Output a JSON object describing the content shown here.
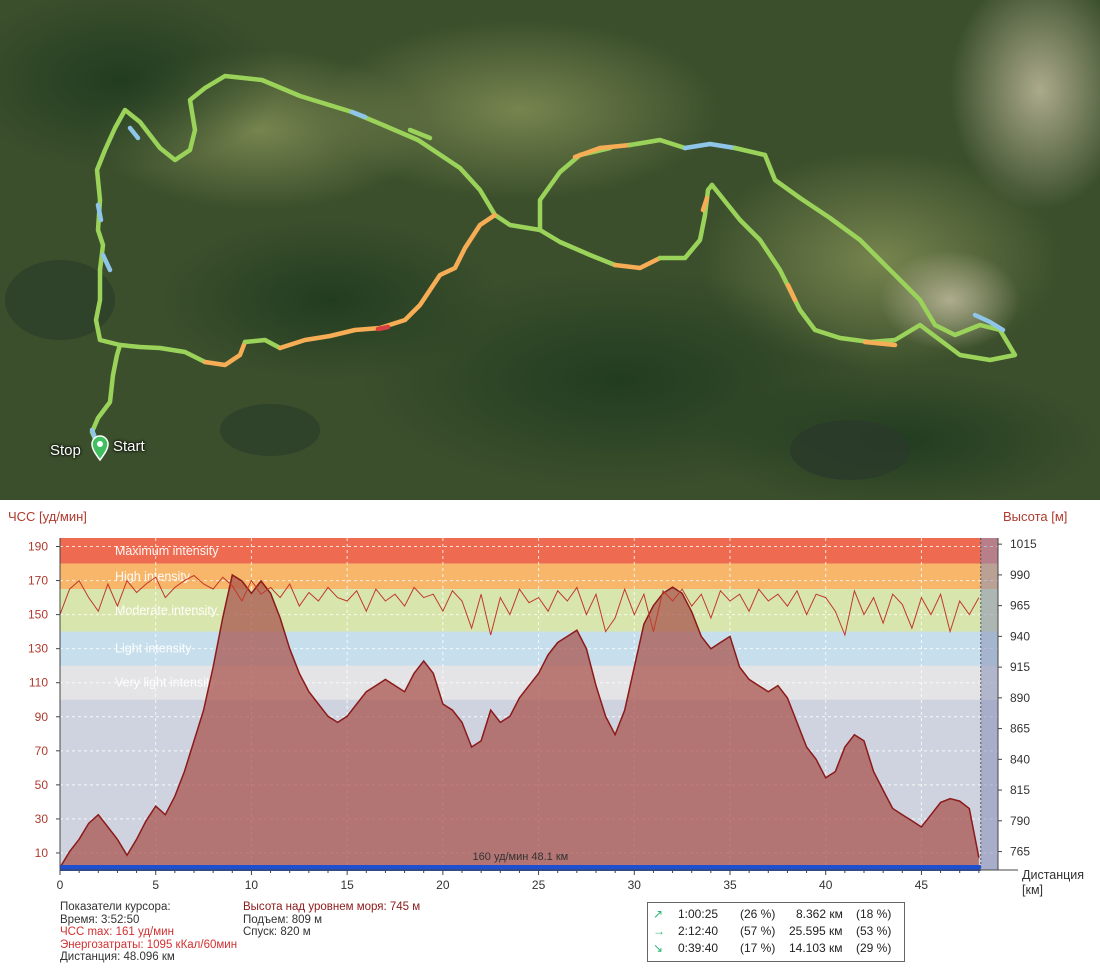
{
  "map": {
    "labels": {
      "stop": "Stop",
      "start": "Start"
    },
    "colors": {
      "route_green": "#9bd35a",
      "route_orange": "#f6ad55",
      "route_blue": "#8ec5e8",
      "route_red": "#d94040",
      "marker": "#3fbf5f"
    }
  },
  "chart": {
    "left_axis_title": "ЧСС [уд/мин]",
    "right_axis_title": "Высота [м]",
    "x_axis_title_line1": "Дистанция",
    "x_axis_title_line2": "[км]",
    "cursor_label": "160 уд/мин 48.1 км"
  },
  "chart_data": {
    "type": "area",
    "xlim": [
      0,
      49
    ],
    "xticks": [
      0,
      5,
      10,
      15,
      20,
      25,
      30,
      35,
      40,
      45
    ],
    "left_axis": {
      "label": "ЧСС [уд/мин]",
      "ylim": [
        0,
        195
      ],
      "ticks": [
        10,
        30,
        50,
        70,
        90,
        110,
        130,
        150,
        170,
        190
      ]
    },
    "right_axis": {
      "label": "Высота [м]",
      "ylim": [
        750,
        1020
      ],
      "ticks": [
        765,
        790,
        815,
        840,
        865,
        890,
        915,
        940,
        965,
        990,
        1015
      ]
    },
    "zones": [
      {
        "name": "Maximum intensity",
        "from": 180,
        "to": 195,
        "color": "#ee6a50"
      },
      {
        "name": "High intensity",
        "from": 165,
        "to": 180,
        "color": "#f7b66a"
      },
      {
        "name": "Moderate intensity",
        "from": 140,
        "to": 165,
        "color": "#d8e6ae"
      },
      {
        "name": "Light intensity",
        "from": 120,
        "to": 140,
        "color": "#c7dfec"
      },
      {
        "name": "Very light intensity",
        "from": 100,
        "to": 120,
        "color": "#e4e4e6"
      }
    ],
    "series": [
      {
        "name": "Высота над уровнем моря",
        "axis": "right",
        "color": "#8b1a1a",
        "x": [
          0,
          0.5,
          1,
          1.5,
          2,
          2.5,
          3,
          3.5,
          4,
          4.5,
          5,
          5.5,
          6,
          6.5,
          7,
          7.5,
          8,
          8.5,
          9,
          9.5,
          10,
          10.5,
          11,
          11.5,
          12,
          12.5,
          13,
          13.5,
          14,
          14.5,
          15,
          15.5,
          16,
          16.5,
          17,
          17.5,
          18,
          18.5,
          19,
          19.5,
          20,
          20.5,
          21,
          21.5,
          22,
          22.5,
          23,
          23.5,
          24,
          24.5,
          25,
          25.5,
          26,
          26.5,
          27,
          27.5,
          28,
          28.5,
          29,
          29.5,
          30,
          30.5,
          31,
          31.5,
          32,
          32.5,
          33,
          33.5,
          34,
          34.5,
          35,
          35.5,
          36,
          36.5,
          37,
          37.5,
          38,
          38.5,
          39,
          39.5,
          40,
          40.5,
          41,
          41.5,
          42,
          42.5,
          43,
          43.5,
          44,
          44.5,
          45,
          45.5,
          46,
          46.5,
          47,
          47.5,
          48
        ],
        "values": [
          752,
          765,
          775,
          788,
          795,
          785,
          775,
          762,
          775,
          790,
          802,
          795,
          810,
          830,
          855,
          880,
          915,
          955,
          990,
          985,
          975,
          985,
          975,
          955,
          930,
          910,
          895,
          885,
          875,
          870,
          875,
          885,
          895,
          900,
          905,
          900,
          895,
          910,
          920,
          910,
          885,
          880,
          870,
          850,
          855,
          880,
          870,
          875,
          890,
          900,
          910,
          925,
          935,
          940,
          945,
          930,
          900,
          875,
          860,
          880,
          915,
          950,
          965,
          975,
          980,
          975,
          960,
          940,
          930,
          935,
          940,
          915,
          905,
          900,
          895,
          900,
          890,
          870,
          850,
          840,
          825,
          830,
          850,
          860,
          855,
          830,
          815,
          800,
          795,
          790,
          785,
          795,
          805,
          808,
          806,
          800,
          760
        ]
      },
      {
        "name": "ЧСС",
        "axis": "left",
        "color": "#c0392b",
        "x": [
          0,
          0.5,
          1,
          1.5,
          2,
          2.5,
          3,
          3.5,
          4,
          4.5,
          5,
          5.5,
          6,
          6.5,
          7,
          7.5,
          8,
          8.5,
          9,
          9.5,
          10,
          10.5,
          11,
          11.5,
          12,
          12.5,
          13,
          13.5,
          14,
          14.5,
          15,
          15.5,
          16,
          16.5,
          17,
          17.5,
          18,
          18.5,
          19,
          19.5,
          20,
          20.5,
          21,
          21.5,
          22,
          22.5,
          23,
          23.5,
          24,
          24.5,
          25,
          25.5,
          26,
          26.5,
          27,
          27.5,
          28,
          28.5,
          29,
          29.5,
          30,
          30.5,
          31,
          31.5,
          32,
          32.5,
          33,
          33.5,
          34,
          34.5,
          35,
          35.5,
          36,
          36.5,
          37,
          37.5,
          38,
          38.5,
          39,
          39.5,
          40,
          40.5,
          41,
          41.5,
          42,
          42.5,
          43,
          43.5,
          44,
          44.5,
          45,
          45.5,
          46,
          46.5,
          47,
          47.5,
          48
        ],
        "values": [
          150,
          165,
          170,
          160,
          152,
          168,
          155,
          170,
          163,
          168,
          172,
          160,
          166,
          170,
          173,
          168,
          165,
          172,
          167,
          158,
          170,
          162,
          166,
          160,
          168,
          155,
          163,
          158,
          166,
          160,
          158,
          164,
          152,
          165,
          158,
          162,
          155,
          166,
          160,
          162,
          152,
          164,
          158,
          142,
          162,
          138,
          160,
          150,
          165,
          157,
          160,
          152,
          164,
          158,
          166,
          150,
          162,
          140,
          148,
          165,
          150,
          162,
          140,
          164,
          158,
          165,
          155,
          162,
          148,
          164,
          158,
          162,
          152,
          165,
          158,
          162,
          155,
          164,
          150,
          162,
          160,
          152,
          138,
          164,
          150,
          160,
          145,
          162,
          156,
          142,
          160,
          150,
          162,
          140,
          158,
          150,
          160
        ]
      }
    ],
    "cursor": {
      "x": 48.1,
      "label": "160 уд/мин 48.1 км"
    }
  },
  "cursor_info": {
    "title": "Показатели курсора:",
    "time": "Время: 3:52:50",
    "hr_max": "ЧСС max: 161 уд/мин",
    "energy": "Энергозатраты: 1095 кКал/60мин",
    "distance": "Дистанция: 48.096 км",
    "altitude": "Высота над уровнем моря: 745 м",
    "ascent": "Подъем: 809 м",
    "descent": "Спуск: 820 м"
  },
  "stats": [
    {
      "icon": "arrow-up-icon",
      "glyph": "↗",
      "time": "1:00:25",
      "time_pct": "(26 %)",
      "dist": "8.362 км",
      "dist_pct": "(18 %)"
    },
    {
      "icon": "arrow-right-icon",
      "glyph": "→",
      "time": "2:12:40",
      "time_pct": "(57 %)",
      "dist": "25.595 км",
      "dist_pct": "(53 %)"
    },
    {
      "icon": "arrow-down-icon",
      "glyph": "↘",
      "time": "0:39:40",
      "time_pct": "(17 %)",
      "dist": "14.103 км",
      "dist_pct": "(29 %)"
    }
  ]
}
